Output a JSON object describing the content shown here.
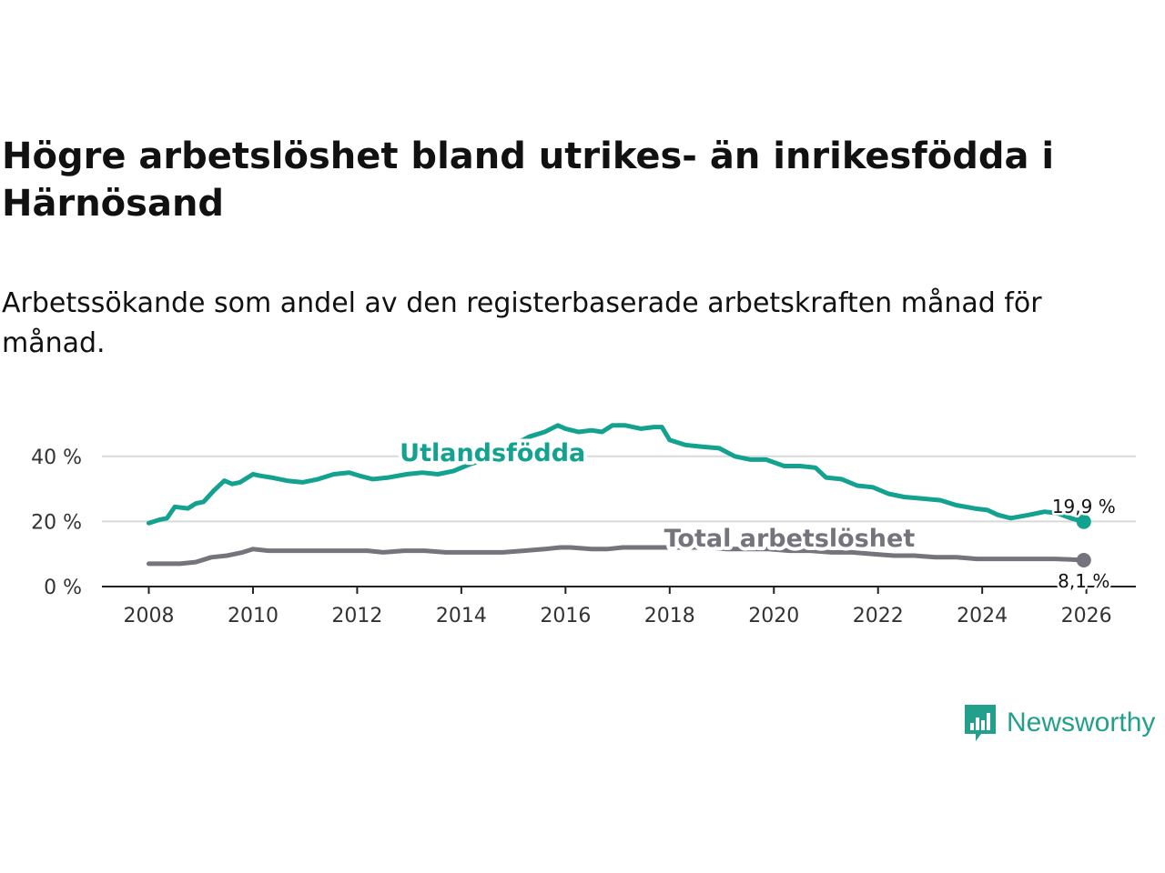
{
  "title": "Högre arbetslöshet bland utrikes- än inrikesfödda i Härnösand",
  "subtitle": "Arbetssökande som andel av den registerbaserade arbetskraften månad för månad.",
  "brand": {
    "name": "Newsworthy",
    "color": "#23a08c"
  },
  "colors": {
    "foreign": "#14a290",
    "total": "#75737b"
  },
  "chart_data": {
    "type": "line",
    "title": "Högre arbetslöshet bland utrikes- än inrikesfödda i Härnösand",
    "xlabel": "",
    "ylabel": "",
    "xlim": [
      2007.1,
      2026.95
    ],
    "ylim": [
      0,
      50
    ],
    "yticks": [
      0,
      20,
      40
    ],
    "ytick_labels": [
      "0 %",
      "20 %",
      "40 %"
    ],
    "xticks": [
      2008,
      2010,
      2012,
      2014,
      2016,
      2018,
      2020,
      2022,
      2024,
      2026
    ],
    "xtick_labels": [
      "2008",
      "2010",
      "2012",
      "2014",
      "2016",
      "2018",
      "2020",
      "2022",
      "2024",
      "2026"
    ],
    "grid": "horizontal",
    "series": [
      {
        "name": "Utlandsfödda",
        "label": "Utlandsfödda",
        "end_label": "19,9 %",
        "x": [
          2008.0,
          2008.2,
          2008.35,
          2008.5,
          2008.75,
          2008.9,
          2009.05,
          2009.25,
          2009.45,
          2009.6,
          2009.75,
          2010.0,
          2010.15,
          2010.35,
          2010.65,
          2010.95,
          2011.25,
          2011.55,
          2011.85,
          2012.05,
          2012.3,
          2012.6,
          2012.95,
          2013.25,
          2013.55,
          2013.85,
          2014.15,
          2014.45,
          2014.75,
          2015.0,
          2015.3,
          2015.6,
          2015.85,
          2016.0,
          2016.25,
          2016.5,
          2016.7,
          2016.9,
          2017.15,
          2017.45,
          2017.7,
          2017.85,
          2018.0,
          2018.3,
          2018.6,
          2018.95,
          2019.25,
          2019.55,
          2019.85,
          2020.2,
          2020.5,
          2020.8,
          2021.0,
          2021.3,
          2021.6,
          2021.9,
          2022.2,
          2022.5,
          2022.85,
          2023.2,
          2023.5,
          2023.85,
          2024.1,
          2024.3,
          2024.55,
          2024.9,
          2025.2,
          2025.45,
          2025.7,
          2025.95
        ],
        "values": [
          19.5,
          20.5,
          21.0,
          24.5,
          24.0,
          25.5,
          26.0,
          29.5,
          32.5,
          31.5,
          32.0,
          34.5,
          34.0,
          33.5,
          32.5,
          32.0,
          33.0,
          34.5,
          35.0,
          34.0,
          33.0,
          33.5,
          34.5,
          35.0,
          34.5,
          35.5,
          37.5,
          39.0,
          41.0,
          43.5,
          46.0,
          47.5,
          49.5,
          48.5,
          47.5,
          48.0,
          47.5,
          49.5,
          49.5,
          48.5,
          49.0,
          49.0,
          45.0,
          43.5,
          43.0,
          42.5,
          40.0,
          39.0,
          39.0,
          37.0,
          37.0,
          36.5,
          33.5,
          33.0,
          31.0,
          30.5,
          28.5,
          27.5,
          27.0,
          26.5,
          25.0,
          24.0,
          23.5,
          22.0,
          21.0,
          22.0,
          23.0,
          22.5,
          21.0,
          19.9
        ]
      },
      {
        "name": "Total arbetslöshet",
        "label": "Total arbetslöshet",
        "end_label": "8,1 %",
        "x": [
          2008.0,
          2008.3,
          2008.6,
          2008.9,
          2009.2,
          2009.5,
          2009.8,
          2010.0,
          2010.3,
          2010.6,
          2011.0,
          2011.4,
          2011.8,
          2012.2,
          2012.5,
          2012.9,
          2013.3,
          2013.7,
          2014.0,
          2014.4,
          2014.8,
          2015.2,
          2015.6,
          2015.9,
          2016.1,
          2016.5,
          2016.8,
          2017.1,
          2017.5,
          2017.9,
          2018.3,
          2018.7,
          2019.1,
          2019.5,
          2019.9,
          2020.3,
          2020.7,
          2021.1,
          2021.5,
          2021.9,
          2022.3,
          2022.7,
          2023.1,
          2023.5,
          2023.9,
          2024.2,
          2024.5,
          2024.8,
          2025.1,
          2025.4,
          2025.7,
          2025.95
        ],
        "values": [
          7.0,
          7.0,
          7.0,
          7.5,
          9.0,
          9.5,
          10.5,
          11.5,
          11.0,
          11.0,
          11.0,
          11.0,
          11.0,
          11.0,
          10.5,
          11.0,
          11.0,
          10.5,
          10.5,
          10.5,
          10.5,
          11.0,
          11.5,
          12.0,
          12.0,
          11.5,
          11.5,
          12.0,
          12.0,
          12.0,
          12.0,
          12.0,
          11.5,
          11.5,
          11.5,
          11.0,
          11.0,
          10.5,
          10.5,
          10.0,
          9.5,
          9.5,
          9.0,
          9.0,
          8.5,
          8.5,
          8.5,
          8.5,
          8.5,
          8.5,
          8.3,
          8.1
        ]
      }
    ]
  }
}
